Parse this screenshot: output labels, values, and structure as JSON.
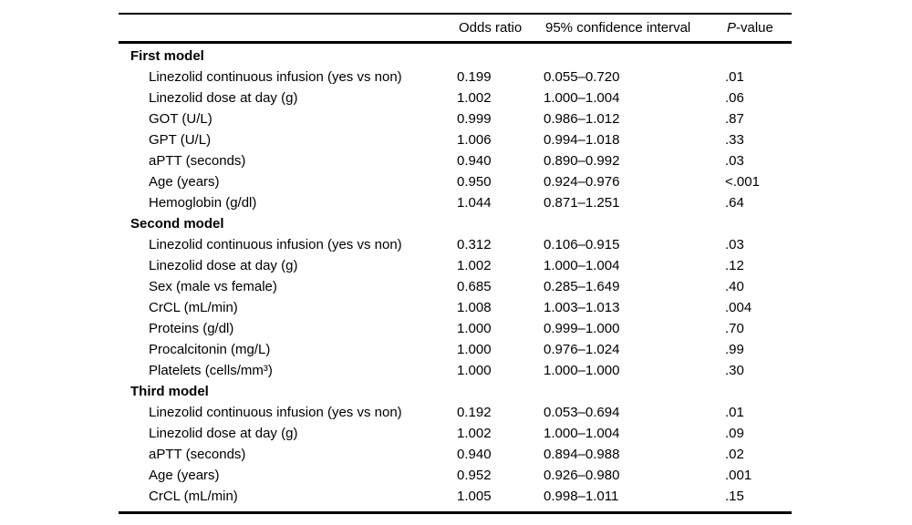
{
  "table": {
    "header": {
      "spacer": "",
      "odds_ratio": "Odds ratio",
      "ci": "95% confidence interval",
      "p_italic": "P",
      "p_rest": "-value"
    },
    "sections": [
      {
        "title": "First model",
        "rows": [
          {
            "label": "Linezolid continuous infusion (yes vs non)",
            "or": "0.199",
            "ci": "0.055–0.720",
            "p": ".01"
          },
          {
            "label": "Linezolid dose at day (g)",
            "or": "1.002",
            "ci": "1.000–1.004",
            "p": ".06"
          },
          {
            "label": "GOT (U/L)",
            "or": "0.999",
            "ci": "0.986–1.012",
            "p": ".87"
          },
          {
            "label": "GPT (U/L)",
            "or": "1.006",
            "ci": "0.994–1.018",
            "p": ".33"
          },
          {
            "label": "aPTT (seconds)",
            "or": "0.940",
            "ci": "0.890–0.992",
            "p": ".03"
          },
          {
            "label": "Age (years)",
            "or": "0.950",
            "ci": "0.924–0.976",
            "p": "<.001"
          },
          {
            "label": "Hemoglobin (g/dl)",
            "or": "1.044",
            "ci": "0.871–1.251",
            "p": ".64"
          }
        ]
      },
      {
        "title": "Second model",
        "rows": [
          {
            "label": "Linezolid continuous infusion (yes vs non)",
            "or": "0.312",
            "ci": "0.106–0.915",
            "p": ".03"
          },
          {
            "label": "Linezolid dose at day (g)",
            "or": "1.002",
            "ci": "1.000–1.004",
            "p": ".12"
          },
          {
            "label": "Sex (male vs female)",
            "or": "0.685",
            "ci": "0.285–1.649",
            "p": ".40"
          },
          {
            "label": "CrCL (mL/min)",
            "or": "1.008",
            "ci": "1.003–1.013",
            "p": ".004"
          },
          {
            "label": "Proteins (g/dl)",
            "or": "1.000",
            "ci": "0.999–1.000",
            "p": ".70"
          },
          {
            "label": "Procalcitonin (mg/L)",
            "or": "1.000",
            "ci": "0.976–1.024",
            "p": ".99"
          },
          {
            "label": "Platelets (cells/mm³)",
            "or": "1.000",
            "ci": "1.000–1.000",
            "p": ".30"
          }
        ]
      },
      {
        "title": "Third model",
        "rows": [
          {
            "label": "Linezolid continuous infusion (yes vs non)",
            "or": "0.192",
            "ci": "0.053–0.694",
            "p": ".01"
          },
          {
            "label": "Linezolid dose at day (g)",
            "or": "1.002",
            "ci": "1.000–1.004",
            "p": ".09"
          },
          {
            "label": "aPTT (seconds)",
            "or": "0.940",
            "ci": "0.894–0.988",
            "p": ".02"
          },
          {
            "label": "Age (years)",
            "or": "0.952",
            "ci": "0.926–0.980",
            "p": ".001"
          },
          {
            "label": "CrCL (mL/min)",
            "or": "1.005",
            "ci": "0.998–1.011",
            "p": ".15"
          }
        ]
      }
    ]
  }
}
